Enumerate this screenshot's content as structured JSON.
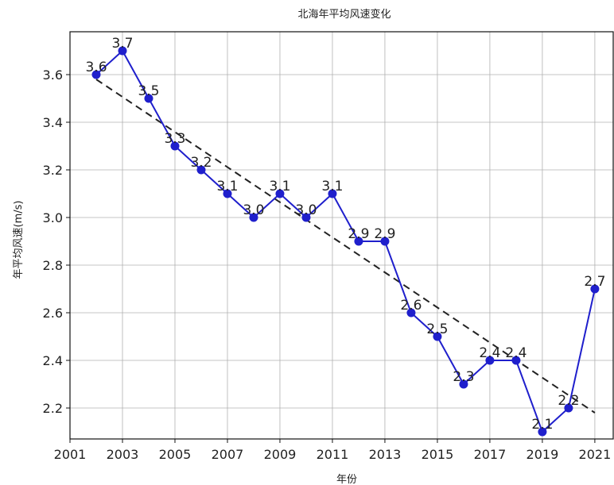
{
  "chart_data": {
    "type": "line",
    "title": "北海年平均风速变化",
    "xlabel": "年份",
    "ylabel": "年平均风速(m/s)",
    "xlim": [
      2001,
      2021.7
    ],
    "ylim": [
      2.07,
      3.78
    ],
    "xticks": [
      2001,
      2003,
      2005,
      2007,
      2009,
      2011,
      2013,
      2015,
      2017,
      2019,
      2021
    ],
    "xtick_labels": [
      "2001",
      "2003",
      "2005",
      "2007",
      "2009",
      "2011",
      "2013",
      "2015",
      "2017",
      "2019",
      "2021"
    ],
    "yticks": [
      2.2,
      2.4,
      2.6,
      2.8,
      3.0,
      3.2,
      3.4,
      3.6
    ],
    "ytick_labels": [
      "2.2",
      "2.4",
      "2.6",
      "2.8",
      "3.0",
      "3.2",
      "3.4",
      "3.6"
    ],
    "grid": true,
    "series": [
      {
        "x": [
          2002,
          2003,
          2004,
          2005,
          2006,
          2007,
          2008,
          2009,
          2010,
          2011,
          2012,
          2013,
          2014,
          2015,
          2016,
          2017,
          2018,
          2019,
          2020,
          2021
        ],
        "y": [
          3.6,
          3.7,
          3.5,
          3.3,
          3.2,
          3.1,
          3.0,
          3.1,
          3.0,
          3.1,
          2.9,
          2.9,
          2.6,
          2.5,
          2.3,
          2.4,
          2.4,
          2.1,
          2.2,
          2.7
        ],
        "labels": [
          "3.6",
          "3.7",
          "3.5",
          "3.3",
          "3.2",
          "3.1",
          "3.0",
          "3.1",
          "3.0",
          "3.1",
          "2.9",
          "2.9",
          "2.6",
          "2.5",
          "2.3",
          "2.4",
          "2.4",
          "2.1",
          "2.2",
          "2.7"
        ],
        "color": "#1f1fcc",
        "marker": "circle"
      }
    ],
    "trendline": {
      "x": [
        2002,
        2021
      ],
      "y": [
        3.58,
        2.18
      ],
      "color": "#222222",
      "style": "dashed"
    }
  }
}
